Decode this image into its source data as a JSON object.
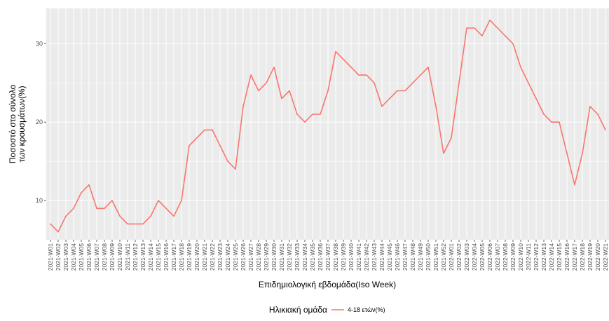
{
  "chart_data": {
    "type": "line",
    "title": "",
    "xlabel": "Επιδημιολογική εβδομάδα(Iso Week)",
    "ylabel_lines": [
      "Ποσοστό στο σύνολο",
      "των κρουσμάτων(%)"
    ],
    "ylim": [
      5,
      34.5
    ],
    "yticks": [
      10,
      20,
      30
    ],
    "grid": true,
    "legend": {
      "title": "Ηλικιακή ομάδα",
      "position": "bottom"
    },
    "x": [
      "2021-W01",
      "2021-W02",
      "2021-W03",
      "2021-W04",
      "2021-W05",
      "2021-W06",
      "2021-W07",
      "2021-W08",
      "2021-W09",
      "2021-W10",
      "2021-W11",
      "2021-W12",
      "2021-W13",
      "2021-W14",
      "2021-W15",
      "2021-W16",
      "2021-W17",
      "2021-W18",
      "2021-W19",
      "2021-W20",
      "2021-W21",
      "2021-W22",
      "2021-W23",
      "2021-W24",
      "2021-W25",
      "2021-W26",
      "2021-W27",
      "2021-W28",
      "2021-W29",
      "2021-W30",
      "2021-W31",
      "2021-W32",
      "2021-W33",
      "2021-W34",
      "2021-W35",
      "2021-W36",
      "2021-W37",
      "2021-W38",
      "2021-W39",
      "2021-W40",
      "2021-W41",
      "2021-W42",
      "2021-W43",
      "2021-W44",
      "2021-W45",
      "2021-W46",
      "2021-W47",
      "2021-W48",
      "2021-W49",
      "2021-W50",
      "2021-W51",
      "2021-W52",
      "2022-W01",
      "2022-W02",
      "2022-W03",
      "2022-W04",
      "2022-W05",
      "2022-W06",
      "2022-W07",
      "2022-W08",
      "2022-W09",
      "2022-W10",
      "2022-W11",
      "2022-W12",
      "2022-W13",
      "2022-W14",
      "2022-W15",
      "2022-W16",
      "2022-W17",
      "2022-W18",
      "2022-W19",
      "2022-W20",
      "2022-W21"
    ],
    "series": [
      {
        "name": "4-18 ετών(%)",
        "color": "#f8766d",
        "values": [
          7,
          6,
          8,
          9,
          11,
          12,
          9,
          9,
          10,
          8,
          7,
          7,
          7,
          8,
          10,
          9,
          8,
          10,
          17,
          18,
          19,
          19,
          17,
          15,
          14,
          22,
          26,
          24,
          25,
          27,
          23,
          24,
          21,
          20,
          21,
          21,
          24,
          29,
          28,
          27,
          26,
          26,
          25,
          22,
          23,
          24,
          24,
          25,
          26,
          27,
          22,
          16,
          18,
          25,
          32,
          32,
          31,
          33,
          32,
          31,
          30,
          27,
          25,
          23,
          21,
          20,
          20,
          16,
          12,
          16,
          22,
          21,
          19
        ]
      }
    ]
  },
  "colors": {
    "panel_background": "#ebebeb",
    "grid": "#ffffff"
  }
}
